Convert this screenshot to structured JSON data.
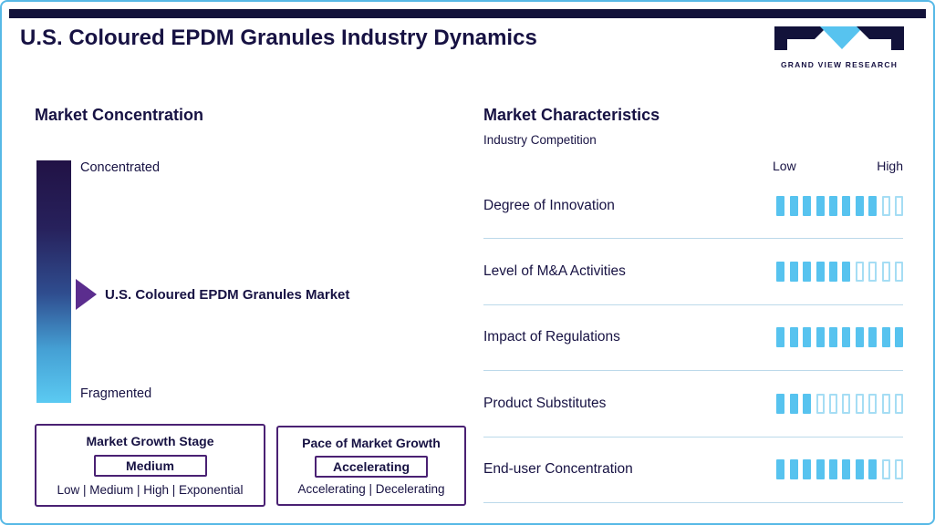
{
  "header": {
    "title": "U.S. Coloured EPDM Granules Industry Dynamics",
    "logo_text": "GRAND VIEW RESEARCH"
  },
  "market_concentration": {
    "heading": "Market Concentration",
    "scale_top_label": "Concentrated",
    "scale_bottom_label": "Fragmented",
    "pointer_label": "U.S. Coloured EPDM Granules Market",
    "growth_stage_box": {
      "title": "Market Growth Stage",
      "selected_value": "Medium",
      "options_text": "Low | Medium | High | Exponential"
    },
    "pace_box": {
      "title": "Pace of Market Growth",
      "selected_value": "Accelerating",
      "options_text": "Accelerating | Decelerating"
    }
  },
  "market_characteristics": {
    "heading": "Market Characteristics",
    "subheading": "Industry Competition",
    "scale_low_label": "Low",
    "scale_high_label": "High",
    "rows": [
      {
        "label": "Degree of Innovation",
        "filled": 8,
        "total": 10
      },
      {
        "label": "Level of M&A Activities",
        "filled": 6,
        "total": 10
      },
      {
        "label": "Impact of Regulations",
        "filled": 10,
        "total": 10
      },
      {
        "label": "Product Substitutes",
        "filled": 3,
        "total": 10
      },
      {
        "label": "End-user Concentration",
        "filled": 8,
        "total": 10
      }
    ]
  },
  "chart_data": {
    "type": "bar",
    "title": "Market Characteristics — Industry Competition",
    "categories": [
      "Degree of Innovation",
      "Level of M&A Activities",
      "Impact of Regulations",
      "Product Substitutes",
      "End-user Concentration"
    ],
    "values": [
      8,
      6,
      10,
      3,
      8
    ],
    "xlabel": "Rating scale (Low to High)",
    "xlim": [
      0,
      10
    ],
    "notes": "Each row is a 10-segment rating from Low to High; filled segments show the level. Market concentration scale runs Concentrated (top) to Fragmented (bottom) with the U.S. Coloured EPDM Granules Market marked slightly past midpoint."
  },
  "colors": {
    "navy": "#171243",
    "purple": "#5b2d8e",
    "accent_blue": "#57c3ef",
    "empty_border": "#a5ddf4",
    "divider": "#bcd9ea",
    "top_bar": "#12123a"
  }
}
